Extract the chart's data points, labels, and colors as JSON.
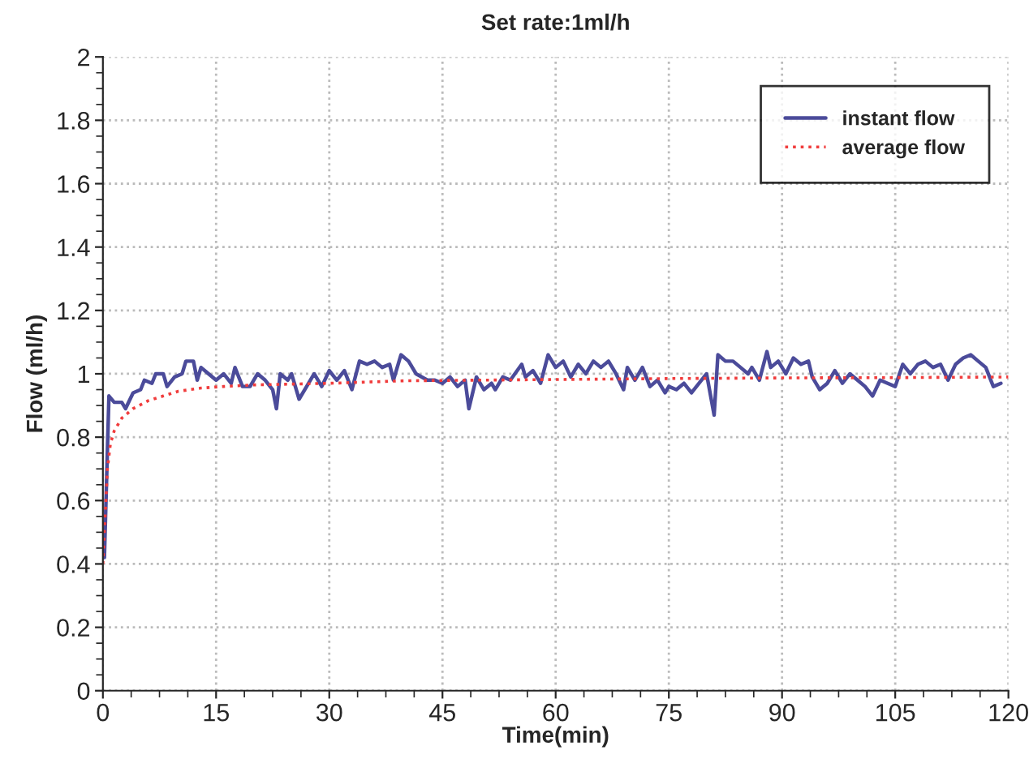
{
  "chart_data": {
    "type": "line",
    "title": "Set rate:1ml/h",
    "xlabel": "Time(min)",
    "ylabel": "Flow (ml/h)",
    "xlim": [
      0,
      120
    ],
    "xticks": [
      0,
      15,
      30,
      45,
      60,
      75,
      90,
      105,
      120
    ],
    "ylim": [
      0,
      2
    ],
    "yticks": [
      0,
      0.2,
      0.4,
      0.6,
      0.8,
      1,
      1.2,
      1.4,
      1.6,
      1.8,
      2
    ],
    "grid": true,
    "legend": "top right",
    "series": [
      {
        "name": "instant flow",
        "color": "#4b4b9a",
        "line_style": "solid",
        "x": [
          0.2,
          0.8,
          1.5,
          2.5,
          3,
          4,
          5,
          5.5,
          6.5,
          7,
          8,
          8.5,
          9.5,
          10.5,
          11,
          12,
          12.5,
          13,
          14,
          15,
          16,
          17,
          17.5,
          18.5,
          19.5,
          20.5,
          21.5,
          22.5,
          23,
          23.5,
          24.5,
          25,
          26,
          27,
          28,
          29,
          30,
          31,
          32,
          33,
          34,
          35,
          36,
          37,
          38,
          38.5,
          39.5,
          40.5,
          41.5,
          43,
          44,
          45,
          46,
          47,
          48,
          48.5,
          49.5,
          50.5,
          51.5,
          52,
          53,
          54,
          55.5,
          56,
          57,
          58,
          59,
          60,
          61,
          62,
          63,
          64,
          65,
          66,
          67,
          68,
          69,
          69.5,
          70.5,
          71.5,
          72.5,
          73.5,
          74.5,
          75,
          76,
          77,
          78,
          79,
          80,
          81,
          81.5,
          82.5,
          83.5,
          84.5,
          85.5,
          86,
          87,
          88,
          88.5,
          89.5,
          90.5,
          91.5,
          92.5,
          93.5,
          94,
          95,
          96,
          97,
          98,
          99,
          100,
          101,
          102,
          103,
          104,
          105,
          106,
          107,
          108,
          109,
          110,
          111,
          112,
          113,
          114,
          115,
          116,
          117,
          118,
          119
        ],
        "values": [
          0.42,
          0.93,
          0.91,
          0.91,
          0.89,
          0.94,
          0.95,
          0.98,
          0.97,
          1.0,
          1.0,
          0.96,
          0.99,
          1.0,
          1.04,
          1.04,
          0.98,
          1.02,
          1.0,
          0.98,
          1.0,
          0.97,
          1.02,
          0.96,
          0.96,
          1.0,
          0.98,
          0.95,
          0.89,
          1.0,
          0.98,
          1.0,
          0.92,
          0.96,
          1.0,
          0.96,
          1.01,
          0.98,
          1.01,
          0.95,
          1.04,
          1.03,
          1.04,
          1.02,
          1.03,
          0.98,
          1.06,
          1.04,
          1.0,
          0.98,
          0.98,
          0.97,
          0.99,
          0.96,
          0.98,
          0.89,
          0.99,
          0.95,
          0.97,
          0.95,
          0.99,
          0.98,
          1.03,
          0.99,
          1.01,
          0.97,
          1.06,
          1.02,
          1.04,
          0.99,
          1.03,
          1.0,
          1.04,
          1.02,
          1.04,
          1.0,
          0.95,
          1.02,
          0.98,
          1.02,
          0.96,
          0.98,
          0.94,
          0.96,
          0.95,
          0.97,
          0.94,
          0.97,
          1.0,
          0.87,
          1.06,
          1.04,
          1.04,
          1.02,
          1.0,
          1.02,
          0.98,
          1.07,
          1.02,
          1.04,
          1.0,
          1.05,
          1.03,
          1.04,
          0.99,
          0.95,
          0.97,
          1.01,
          0.97,
          1.0,
          0.98,
          0.96,
          0.93,
          0.98,
          0.97,
          0.96,
          1.03,
          1.0,
          1.03,
          1.04,
          1.02,
          1.03,
          0.98,
          1.03,
          1.05,
          1.06,
          1.04,
          1.02,
          0.96,
          0.97
        ]
      },
      {
        "name": "average flow",
        "color": "#f03c3c",
        "line_style": "dotted",
        "x": [
          0,
          0.3,
          0.6,
          1,
          1.5,
          2.5,
          4,
          6,
          8,
          10,
          13,
          16,
          20,
          30,
          40,
          50,
          60,
          75,
          90,
          105,
          120
        ],
        "values": [
          0.4,
          0.55,
          0.7,
          0.78,
          0.82,
          0.86,
          0.89,
          0.915,
          0.93,
          0.945,
          0.955,
          0.96,
          0.965,
          0.97,
          0.978,
          0.98,
          0.982,
          0.985,
          0.987,
          0.988,
          0.99
        ]
      }
    ]
  }
}
